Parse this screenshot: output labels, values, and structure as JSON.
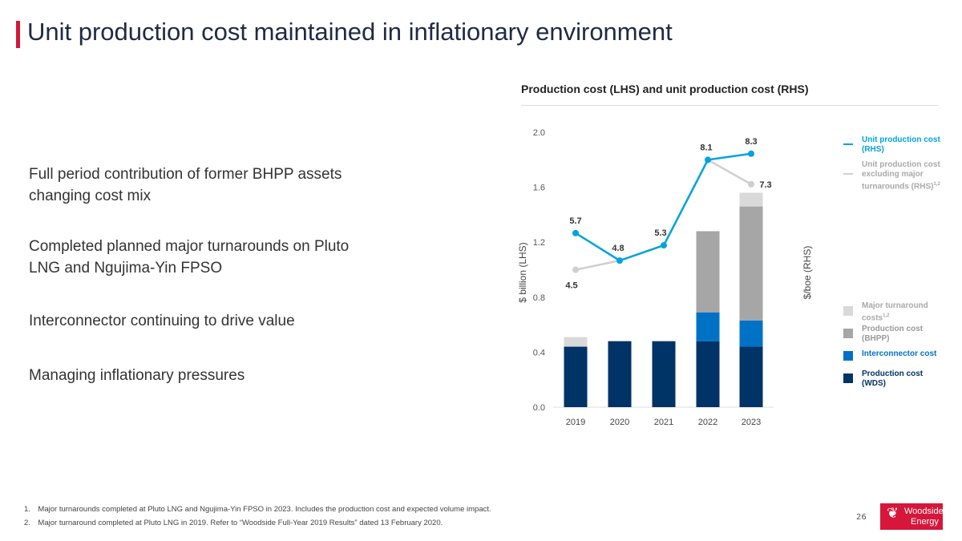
{
  "title": "Unit production cost maintained in inflationary environment",
  "bullets": [
    "Full period contribution of former BHPP assets changing cost mix",
    "Completed planned major turnarounds on Pluto LNG and Ngujima-Yin FPSO",
    "Interconnector continuing to drive value",
    "Managing inflationary pressures"
  ],
  "footnotes": [
    "1. Major turnarounds completed at Pluto LNG and Ngujima-Yin FPSO in 2023. Includes the production cost and expected volume impact.",
    "2. Major turnaround completed at Pluto LNG in 2019. Refer to “Woodside Full-Year 2019 Results” dated 13 February 2020."
  ],
  "page_number": "26",
  "logo": {
    "line1": "Woodside",
    "line2": "Energy"
  },
  "colors": {
    "wds": "#003366",
    "interconnector": "#0072c6",
    "bhpp": "#a6a6a6",
    "turnaround": "#d9d9d9",
    "unit": "#00a3e0",
    "unit_excl": "#cfcfcf",
    "accent": "#d6163a"
  },
  "chart_data": {
    "type": "bar",
    "title": "Production cost (LHS) and unit production cost (RHS)",
    "ylabel": "$ billion (LHS)",
    "y2label": "$/boe (RHS)",
    "ylim": [
      0,
      2.0
    ],
    "yticks": [
      "0.0",
      "0.4",
      "0.8",
      "1.2",
      "1.6",
      "2.0"
    ],
    "categories": [
      "2019",
      "2020",
      "2021",
      "2022",
      "2023"
    ],
    "stacked_series": [
      {
        "name": "Production cost (WDS)",
        "values": [
          0.44,
          0.48,
          0.48,
          0.48,
          0.44
        ]
      },
      {
        "name": "Interconnector cost",
        "values": [
          0,
          0,
          0,
          0.21,
          0.19
        ]
      },
      {
        "name": "Production cost (BHPP)",
        "values": [
          0,
          0,
          0,
          0.59,
          0.83
        ]
      },
      {
        "name": "Major turnaround costs",
        "sup": "1,2",
        "values": [
          0.07,
          0,
          0,
          0,
          0.1
        ]
      }
    ],
    "line_series": [
      {
        "name": "Unit production cost (RHS)",
        "values": [
          5.7,
          4.8,
          5.3,
          8.1,
          8.3
        ],
        "labels": [
          "5.7",
          "4.8",
          "5.3",
          "8.1",
          "8.3"
        ]
      },
      {
        "name": "Unit production cost excluding major turnarounds (RHS)",
        "sup": "1,2",
        "values": [
          4.5,
          4.8,
          5.3,
          8.1,
          7.3
        ],
        "labels": [
          "4.5",
          "",
          "",
          "",
          "7.3"
        ]
      }
    ],
    "legend_position": "right"
  }
}
